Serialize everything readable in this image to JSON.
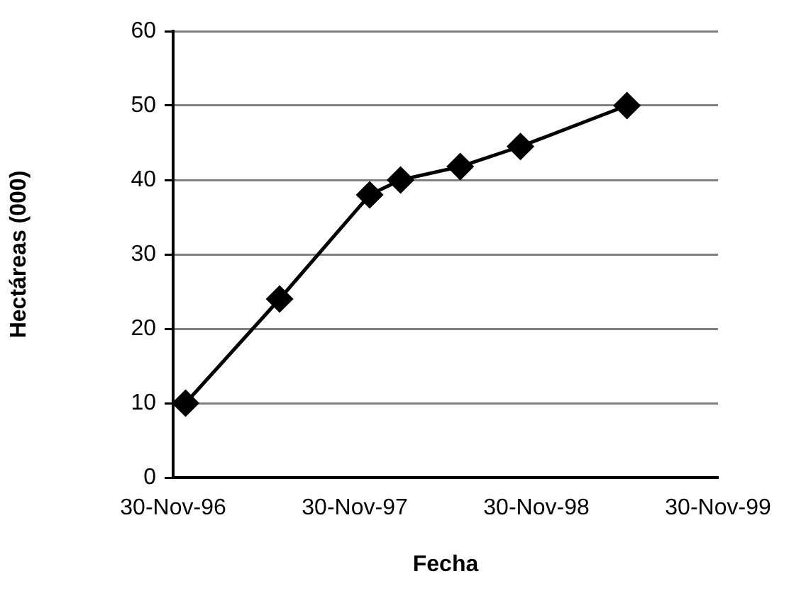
{
  "chart_data": {
    "type": "line",
    "xlabel": "Fecha",
    "ylabel": "Hectáreas (000)",
    "x": [
      "1996-12-25",
      "1997-07-02",
      "1997-12-30",
      "1998-03-02",
      "1998-06-30",
      "1998-10-29",
      "1999-05-31"
    ],
    "series": [
      {
        "color": "#000000",
        "values": [
          10,
          24,
          38,
          40,
          41.8,
          44.5,
          50
        ]
      }
    ],
    "xlim": [
      "1996-11-30",
      "1999-11-30"
    ],
    "xticks": [
      {
        "value": "1996-11-30",
        "label": "30-Nov-96"
      },
      {
        "value": "1997-11-30",
        "label": "30-Nov-97"
      },
      {
        "value": "1998-11-30",
        "label": "30-Nov-98"
      },
      {
        "value": "1999-11-30",
        "label": "30-Nov-99"
      }
    ],
    "ylim": [
      0,
      60
    ],
    "yticks": [
      0,
      10,
      20,
      30,
      40,
      50,
      60
    ],
    "grid": "y",
    "legend": false,
    "marker": "diamond",
    "line_style": "solid"
  }
}
